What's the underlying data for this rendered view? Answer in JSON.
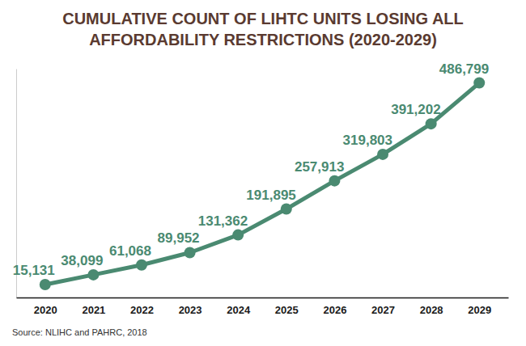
{
  "chart_data": {
    "type": "line",
    "title": "CUMULATIVE COUNT OF LIHTC UNITS LOSING ALL AFFORDABILITY RESTRICTIONS (2020-2029)",
    "source": "Source: NLIHC and PAHRC, 2018",
    "categories": [
      "2020",
      "2021",
      "2022",
      "2023",
      "2024",
      "2025",
      "2026",
      "2027",
      "2028",
      "2029"
    ],
    "values": [
      15131,
      38099,
      61068,
      89952,
      131362,
      191895,
      257913,
      319803,
      391202,
      486799
    ],
    "value_labels": [
      "15,131",
      "38,099",
      "61,068",
      "89,952",
      "131,362",
      "191,895",
      "257,913",
      "319,803",
      "391,202",
      "486,799"
    ],
    "data_labels": true,
    "color": "#4a8a71",
    "marker": "circle",
    "line_style": "solid",
    "ylim": [
      -15000,
      520000
    ],
    "yticks": [],
    "tick_labels": "x",
    "grid": false
  }
}
